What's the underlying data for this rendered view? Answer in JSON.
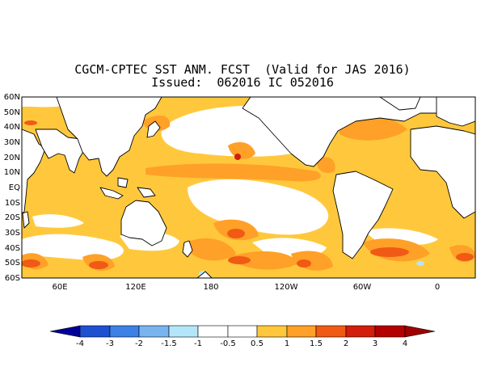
{
  "header": {
    "title": "CGCM-CPTEC SST ANM. FCST  (Valid for JAS 2016)",
    "issued": "Issued:  062016 IC 052016"
  },
  "map": {
    "lat_labels": [
      "60N",
      "50N",
      "40N",
      "30N",
      "20N",
      "10N",
      "EQ",
      "10S",
      "20S",
      "30S",
      "40S",
      "50S",
      "60S"
    ],
    "lon_labels": [
      "60E",
      "120E",
      "180",
      "120W",
      "60W",
      "0"
    ]
  },
  "colorbar": {
    "ticks": [
      "-4",
      "-3",
      "-2",
      "-1.5",
      "-1",
      "-0.5",
      "0.5",
      "1",
      "1.5",
      "2",
      "3",
      "4"
    ],
    "colors": [
      "#000096",
      "#1e50d2",
      "#3c82e6",
      "#78b4f0",
      "#b4e6fa",
      "#ffffff",
      "#ffc83c",
      "#ffa028",
      "#f05a14",
      "#d21e0a",
      "#a00000"
    ]
  }
}
